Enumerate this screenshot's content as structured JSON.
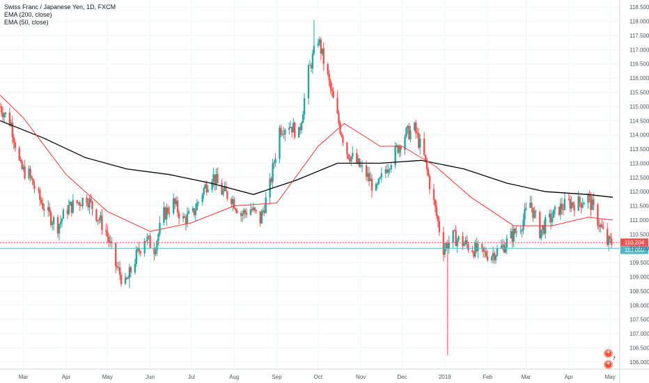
{
  "legend": {
    "title": "Swiss Franc / Japanese Yen, 1D, FXCM",
    "ema200": "EMA (200, close)",
    "ema50": "EMA (50, close)"
  },
  "price_tags": {
    "current": "110.204",
    "support": "110.000"
  },
  "badges": {
    "count": "7"
  },
  "colors": {
    "up": "#26a69a",
    "down": "#ef5350",
    "ema200": "#000000",
    "ema50": "#e53935",
    "support_line": "#4fb8c8",
    "current_line": "#ef5350",
    "grid": "#f0f3fa"
  },
  "chart_data": {
    "type": "candlestick",
    "title": "Swiss Franc / Japanese Yen, 1D, FXCM",
    "ylim": [
      105.75,
      118.75
    ],
    "y_ticks": [
      "106.000",
      "106.500",
      "107.000",
      "107.500",
      "108.000",
      "108.500",
      "109.000",
      "109.500",
      "110.000",
      "110.500",
      "111.000",
      "111.500",
      "112.000",
      "112.500",
      "113.000",
      "113.500",
      "114.000",
      "114.500",
      "115.000",
      "115.500",
      "116.000",
      "116.500",
      "117.000",
      "117.500",
      "118.000",
      "118.500"
    ],
    "x_ticks": [
      "Mar",
      "Apr",
      "May",
      "Jun",
      "Jul",
      "Aug",
      "Sep",
      "Oct",
      "Nov",
      "Dec",
      "2019",
      "Feb",
      "Mar",
      "Apr",
      "May"
    ],
    "x_tick_dates": [
      "2018-03-01",
      "2018-04-01",
      "2018-05-01",
      "2018-06-01",
      "2018-07-01",
      "2018-08-01",
      "2018-09-01",
      "2018-10-01",
      "2018-11-01",
      "2018-12-01",
      "2019-01-01",
      "2019-02-01",
      "2019-03-01",
      "2019-04-01",
      "2019-05-01"
    ],
    "x_range": [
      "2018-02-12",
      "2019-05-08"
    ],
    "price_path": [
      [
        "2018-02-12",
        115.0
      ],
      [
        "2018-02-20",
        114.4
      ],
      [
        "2018-02-27",
        112.8
      ],
      [
        "2018-03-05",
        112.6
      ],
      [
        "2018-03-12",
        111.8
      ],
      [
        "2018-03-19",
        111.2
      ],
      [
        "2018-03-26",
        110.8
      ],
      [
        "2018-04-02",
        111.4
      ],
      [
        "2018-04-09",
        111.6
      ],
      [
        "2018-04-16",
        111.8
      ],
      [
        "2018-04-23",
        111.2
      ],
      [
        "2018-04-30",
        110.6
      ],
      [
        "2018-05-07",
        109.4
      ],
      [
        "2018-05-14",
        108.7
      ],
      [
        "2018-05-21",
        109.6
      ],
      [
        "2018-05-28",
        110.4
      ],
      [
        "2018-06-04",
        110.0
      ],
      [
        "2018-06-11",
        111.2
      ],
      [
        "2018-06-18",
        111.6
      ],
      [
        "2018-06-25",
        111.0
      ],
      [
        "2018-07-02",
        111.2
      ],
      [
        "2018-07-09",
        112.0
      ],
      [
        "2018-07-16",
        112.6
      ],
      [
        "2018-07-23",
        112.0
      ],
      [
        "2018-07-30",
        111.8
      ],
      [
        "2018-08-06",
        111.2
      ],
      [
        "2018-08-13",
        111.4
      ],
      [
        "2018-08-20",
        111.0
      ],
      [
        "2018-08-27",
        112.2
      ],
      [
        "2018-09-03",
        114.2
      ],
      [
        "2018-09-10",
        114.4
      ],
      [
        "2018-09-17",
        114.0
      ],
      [
        "2018-09-24",
        116.2
      ],
      [
        "2018-10-01",
        117.4
      ],
      [
        "2018-10-08",
        116.0
      ],
      [
        "2018-10-15",
        114.6
      ],
      [
        "2018-10-22",
        113.4
      ],
      [
        "2018-10-29",
        113.0
      ],
      [
        "2018-11-05",
        112.6
      ],
      [
        "2018-11-12",
        112.0
      ],
      [
        "2018-11-19",
        112.8
      ],
      [
        "2018-11-26",
        113.4
      ],
      [
        "2018-12-03",
        114.0
      ],
      [
        "2018-12-10",
        114.2
      ],
      [
        "2018-12-17",
        113.2
      ],
      [
        "2018-12-24",
        111.6
      ],
      [
        "2018-12-31",
        110.0
      ],
      [
        "2019-01-07",
        110.4
      ],
      [
        "2019-01-14",
        110.2
      ],
      [
        "2019-01-21",
        110.0
      ],
      [
        "2019-01-28",
        109.8
      ],
      [
        "2019-02-04",
        109.8
      ],
      [
        "2019-02-11",
        110.0
      ],
      [
        "2019-02-18",
        110.4
      ],
      [
        "2019-02-25",
        110.8
      ],
      [
        "2019-03-04",
        111.6
      ],
      [
        "2019-03-11",
        110.6
      ],
      [
        "2019-03-18",
        111.0
      ],
      [
        "2019-03-25",
        111.4
      ],
      [
        "2019-04-01",
        111.6
      ],
      [
        "2019-04-08",
        111.6
      ],
      [
        "2019-04-15",
        111.8
      ],
      [
        "2019-04-22",
        111.0
      ],
      [
        "2019-04-29",
        110.2
      ]
    ],
    "notable_points": [
      {
        "date": "2018-09-28",
        "high": 118.05
      },
      {
        "date": "2018-05-17",
        "low": 108.6
      },
      {
        "date": "2019-01-03",
        "low": 106.25
      }
    ],
    "series": [
      {
        "name": "EMA (200, close)",
        "points": [
          [
            "2018-02-12",
            114.5
          ],
          [
            "2018-03-15",
            113.9
          ],
          [
            "2018-04-15",
            113.2
          ],
          [
            "2018-05-15",
            112.8
          ],
          [
            "2018-06-15",
            112.6
          ],
          [
            "2018-07-15",
            112.3
          ],
          [
            "2018-08-15",
            111.9
          ],
          [
            "2018-09-15",
            112.4
          ],
          [
            "2018-10-15",
            113.0
          ],
          [
            "2018-11-15",
            113.0
          ],
          [
            "2018-12-15",
            113.1
          ],
          [
            "2019-01-15",
            112.8
          ],
          [
            "2019-02-15",
            112.3
          ],
          [
            "2019-03-15",
            112.0
          ],
          [
            "2019-04-15",
            111.9
          ],
          [
            "2019-05-03",
            111.8
          ]
        ]
      },
      {
        "name": "EMA (50, close)",
        "points": [
          [
            "2018-02-12",
            115.4
          ],
          [
            "2018-03-01",
            114.6
          ],
          [
            "2018-04-01",
            112.6
          ],
          [
            "2018-05-01",
            111.3
          ],
          [
            "2018-06-01",
            110.6
          ],
          [
            "2018-07-01",
            110.9
          ],
          [
            "2018-08-01",
            111.5
          ],
          [
            "2018-09-01",
            111.6
          ],
          [
            "2018-10-01",
            113.6
          ],
          [
            "2018-10-20",
            114.4
          ],
          [
            "2018-11-15",
            113.6
          ],
          [
            "2018-12-01",
            113.6
          ],
          [
            "2018-12-25",
            112.9
          ],
          [
            "2019-01-20",
            111.8
          ],
          [
            "2019-02-20",
            110.8
          ],
          [
            "2019-03-20",
            110.8
          ],
          [
            "2019-04-15",
            111.1
          ],
          [
            "2019-05-03",
            111.0
          ]
        ]
      }
    ],
    "horizontal_lines": [
      {
        "label": "110.204",
        "value": 110.204
      },
      {
        "label": "110.000",
        "value": 110.0
      }
    ],
    "grid": true
  }
}
